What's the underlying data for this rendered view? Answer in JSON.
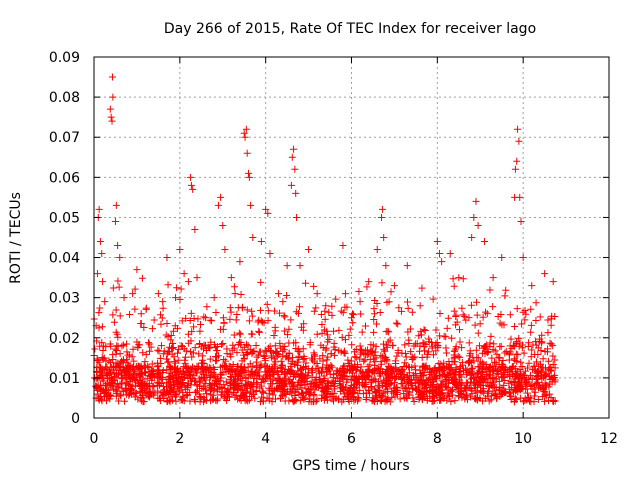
{
  "chart_data": {
    "type": "scatter",
    "title": "Day 266 of 2015, Rate Of TEC Index for receiver lago",
    "xlabel": "GPS time / hours",
    "ylabel": "ROTI / TECUs",
    "xlim": [
      0,
      12
    ],
    "ylim": [
      0,
      0.09
    ],
    "xticks": [
      "0",
      "2",
      "4",
      "6",
      "8",
      "10",
      "12"
    ],
    "yticks": [
      "0",
      "0.01",
      "0.02",
      "0.03",
      "0.04",
      "0.05",
      "0.06",
      "0.07",
      "0.08",
      "0.09"
    ],
    "grid": true,
    "marker": "+",
    "color": "#ff0000",
    "series": [
      {
        "name": "ROTI",
        "points": [
          [
            0.05,
            0.023
          ],
          [
            0.08,
            0.036
          ],
          [
            0.1,
            0.05
          ],
          [
            0.12,
            0.052
          ],
          [
            0.15,
            0.044
          ],
          [
            0.18,
            0.041
          ],
          [
            0.2,
            0.034
          ],
          [
            0.25,
            0.029
          ],
          [
            0.38,
            0.077
          ],
          [
            0.4,
            0.075
          ],
          [
            0.42,
            0.074
          ],
          [
            0.43,
            0.085
          ],
          [
            0.44,
            0.08
          ],
          [
            0.5,
            0.049
          ],
          [
            0.52,
            0.053
          ],
          [
            0.55,
            0.043
          ],
          [
            0.6,
            0.04
          ],
          [
            0.7,
            0.03
          ],
          [
            0.9,
            0.031
          ],
          [
            1.0,
            0.037
          ],
          [
            1.1,
            0.026
          ],
          [
            1.5,
            0.031
          ],
          [
            1.6,
            0.029
          ],
          [
            1.7,
            0.04
          ],
          [
            1.9,
            0.03
          ],
          [
            2.0,
            0.042
          ],
          [
            2.1,
            0.036
          ],
          [
            2.2,
            0.034
          ],
          [
            2.25,
            0.06
          ],
          [
            2.27,
            0.058
          ],
          [
            2.3,
            0.057
          ],
          [
            2.35,
            0.047
          ],
          [
            2.4,
            0.035
          ],
          [
            2.6,
            0.025
          ],
          [
            2.8,
            0.03
          ],
          [
            2.9,
            0.053
          ],
          [
            2.95,
            0.055
          ],
          [
            3.0,
            0.048
          ],
          [
            3.05,
            0.042
          ],
          [
            3.2,
            0.035
          ],
          [
            3.4,
            0.039
          ],
          [
            3.5,
            0.071
          ],
          [
            3.52,
            0.07
          ],
          [
            3.55,
            0.072
          ],
          [
            3.57,
            0.066
          ],
          [
            3.6,
            0.061
          ],
          [
            3.62,
            0.06
          ],
          [
            3.65,
            0.053
          ],
          [
            3.7,
            0.045
          ],
          [
            3.9,
            0.044
          ],
          [
            4.0,
            0.052
          ],
          [
            4.05,
            0.051
          ],
          [
            4.1,
            0.041
          ],
          [
            4.3,
            0.031
          ],
          [
            4.4,
            0.029
          ],
          [
            4.5,
            0.038
          ],
          [
            4.6,
            0.058
          ],
          [
            4.62,
            0.065
          ],
          [
            4.65,
            0.067
          ],
          [
            4.68,
            0.062
          ],
          [
            4.7,
            0.056
          ],
          [
            4.72,
            0.05
          ],
          [
            4.8,
            0.038
          ],
          [
            5.0,
            0.042
          ],
          [
            5.2,
            0.031
          ],
          [
            5.4,
            0.028
          ],
          [
            5.8,
            0.043
          ],
          [
            6.0,
            0.025
          ],
          [
            6.2,
            0.029
          ],
          [
            6.4,
            0.034
          ],
          [
            6.6,
            0.042
          ],
          [
            6.7,
            0.05
          ],
          [
            6.72,
            0.052
          ],
          [
            6.75,
            0.045
          ],
          [
            6.8,
            0.038
          ],
          [
            7.0,
            0.033
          ],
          [
            7.3,
            0.038
          ],
          [
            7.6,
            0.028
          ],
          [
            8.0,
            0.044
          ],
          [
            8.05,
            0.041
          ],
          [
            8.1,
            0.039
          ],
          [
            8.3,
            0.041
          ],
          [
            8.5,
            0.035
          ],
          [
            8.8,
            0.045
          ],
          [
            8.85,
            0.05
          ],
          [
            8.9,
            0.054
          ],
          [
            8.95,
            0.048
          ],
          [
            9.1,
            0.044
          ],
          [
            9.3,
            0.035
          ],
          [
            9.5,
            0.04
          ],
          [
            9.8,
            0.055
          ],
          [
            9.82,
            0.062
          ],
          [
            9.85,
            0.064
          ],
          [
            9.87,
            0.072
          ],
          [
            9.9,
            0.069
          ],
          [
            9.92,
            0.055
          ],
          [
            9.95,
            0.049
          ],
          [
            10.0,
            0.04
          ],
          [
            10.2,
            0.033
          ],
          [
            10.5,
            0.036
          ],
          [
            10.7,
            0.034
          ]
        ]
      }
    ]
  }
}
